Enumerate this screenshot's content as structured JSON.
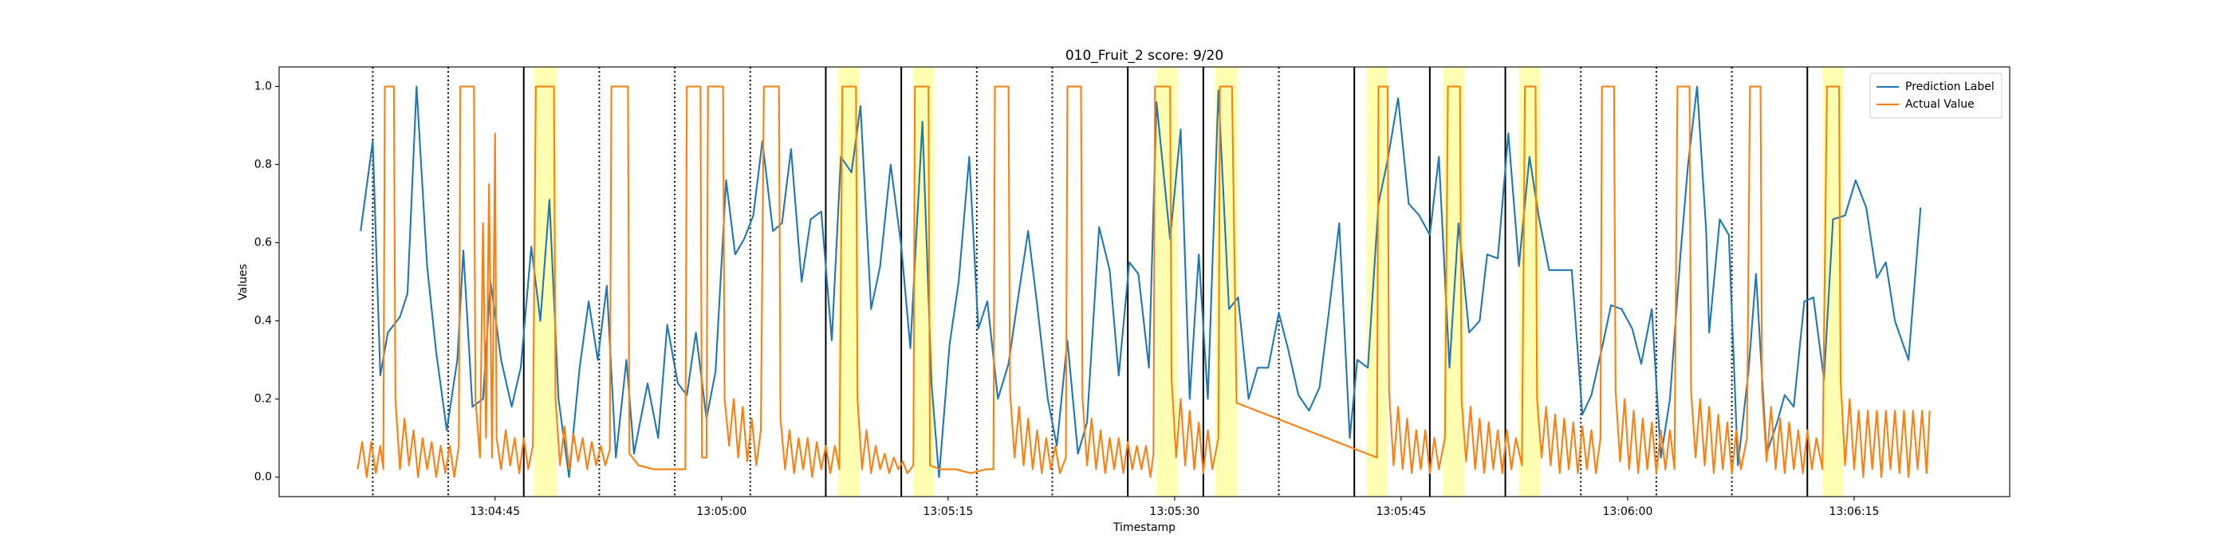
{
  "chart_data": {
    "type": "line",
    "title": "010_Fruit_2 score: 9/20",
    "x_label": "Timestamp",
    "y_label": "Values",
    "xlim": [
      30.7,
      145.3
    ],
    "ylim": [
      -0.05,
      1.05
    ],
    "xticks": [
      {
        "value": 45,
        "label": "13:04:45"
      },
      {
        "value": 60,
        "label": "13:05:00"
      },
      {
        "value": 75,
        "label": "13:05:15"
      },
      {
        "value": 90,
        "label": "13:05:30"
      },
      {
        "value": 105,
        "label": "13:05:45"
      },
      {
        "value": 120,
        "label": "13:06:00"
      },
      {
        "value": 135,
        "label": "13:06:15"
      }
    ],
    "yticks": [
      {
        "value": 0,
        "label": "0.0"
      },
      {
        "value": 0.2,
        "label": "0.2"
      },
      {
        "value": 0.4,
        "label": "0.4"
      },
      {
        "value": 0.6,
        "label": "0.6"
      },
      {
        "value": 0.8,
        "label": "0.8"
      },
      {
        "value": 1.0,
        "label": "1.0"
      }
    ],
    "legend": "upper right",
    "vline_color": "#000000",
    "vlines_solid": [
      46.9,
      66.9,
      71.9,
      86.9,
      91.9,
      101.9,
      106.9,
      111.9,
      131.9
    ],
    "vlines_dotted": [
      36.9,
      41.9,
      51.9,
      56.9,
      61.9,
      76.9,
      81.9,
      96.9,
      116.9,
      121.9,
      126.9
    ],
    "span_color": "#ffff00",
    "spans": [
      [
        47.6,
        49.1
      ],
      [
        67.7,
        69.1
      ],
      [
        72.7,
        74.1
      ],
      [
        88.8,
        90.2
      ],
      [
        92.7,
        94.2
      ],
      [
        102.7,
        104.1
      ],
      [
        107.8,
        109.2
      ],
      [
        112.8,
        114.2
      ],
      [
        132.9,
        134.3
      ]
    ],
    "series": [
      {
        "name": "Prediction Label",
        "color": "#1f77b4",
        "x": [
          36.1,
          36.9,
          37.4,
          37.9,
          38.7,
          39.2,
          39.8,
          40.5,
          41.1,
          41.8,
          42.5,
          42.9,
          43.5,
          44.2,
          44.7,
          45.4,
          46.1,
          46.7,
          47.4,
          48.0,
          48.6,
          49.2,
          49.9,
          50.6,
          51.2,
          51.8,
          52.4,
          53.0,
          53.7,
          54.2,
          55.1,
          55.8,
          56.4,
          57.1,
          57.7,
          58.3,
          59.0,
          59.6,
          60.3,
          60.9,
          61.5,
          62.1,
          62.7,
          63.4,
          64.0,
          64.6,
          65.3,
          65.9,
          66.6,
          67.3,
          67.9,
          68.6,
          69.2,
          69.9,
          70.5,
          71.2,
          71.9,
          72.5,
          73.3,
          73.9,
          74.4,
          75.1,
          75.7,
          76.4,
          77.0,
          77.6,
          78.3,
          79.0,
          79.6,
          80.3,
          80.9,
          81.6,
          82.2,
          82.9,
          83.6,
          84.2,
          85.0,
          85.7,
          86.3,
          87.0,
          87.6,
          88.3,
          88.8,
          89.7,
          90.4,
          91.0,
          91.6,
          92.2,
          92.9,
          93.6,
          94.2,
          94.9,
          95.5,
          96.2,
          96.9,
          97.5,
          98.2,
          98.9,
          99.6,
          100.3,
          100.9,
          101.6,
          102.1,
          102.8,
          103.5,
          104.1,
          104.8,
          105.5,
          106.2,
          106.9,
          107.5,
          108.2,
          108.8,
          109.5,
          110.2,
          110.7,
          111.4,
          112.1,
          112.8,
          113.5,
          114.1,
          114.8,
          115.5,
          116.3,
          117.0,
          117.6,
          118.3,
          118.9,
          119.6,
          120.3,
          120.9,
          121.6,
          122.2,
          122.8,
          123.5,
          124.0,
          124.6,
          125.2,
          125.4,
          126.1,
          126.7,
          127.3,
          128.0,
          128.5,
          129.2,
          129.9,
          130.4,
          131.0,
          131.7,
          132.3,
          133.0,
          133.6,
          134.4,
          135.1,
          135.8,
          136.5,
          137.1,
          137.7,
          138.6,
          139.4
        ],
        "values": [
          0.63,
          0.86,
          0.26,
          0.37,
          0.41,
          0.47,
          1.0,
          0.54,
          0.32,
          0.12,
          0.3,
          0.58,
          0.18,
          0.2,
          0.5,
          0.3,
          0.18,
          0.28,
          0.59,
          0.4,
          0.71,
          0.2,
          0.0,
          0.28,
          0.45,
          0.3,
          0.49,
          0.05,
          0.3,
          0.06,
          0.24,
          0.1,
          0.39,
          0.24,
          0.21,
          0.37,
          0.15,
          0.27,
          0.76,
          0.57,
          0.61,
          0.67,
          0.86,
          0.63,
          0.65,
          0.84,
          0.5,
          0.66,
          0.68,
          0.35,
          0.82,
          0.78,
          0.95,
          0.43,
          0.54,
          0.8,
          0.59,
          0.33,
          0.91,
          0.24,
          0.0,
          0.34,
          0.5,
          0.82,
          0.38,
          0.45,
          0.2,
          0.29,
          0.45,
          0.63,
          0.44,
          0.2,
          0.08,
          0.35,
          0.06,
          0.14,
          0.64,
          0.53,
          0.26,
          0.55,
          0.52,
          0.28,
          0.96,
          0.61,
          0.89,
          0.2,
          0.57,
          0.2,
          0.99,
          0.43,
          0.46,
          0.2,
          0.28,
          0.28,
          0.42,
          0.33,
          0.21,
          0.17,
          0.23,
          0.45,
          0.65,
          0.1,
          0.3,
          0.28,
          0.7,
          0.81,
          0.97,
          0.7,
          0.67,
          0.62,
          0.82,
          0.28,
          0.65,
          0.37,
          0.4,
          0.57,
          0.56,
          0.88,
          0.54,
          0.82,
          0.67,
          0.53,
          0.53,
          0.53,
          0.16,
          0.21,
          0.33,
          0.44,
          0.43,
          0.38,
          0.29,
          0.43,
          0.05,
          0.2,
          0.57,
          0.8,
          1.0,
          0.63,
          0.37,
          0.66,
          0.62,
          0.03,
          0.27,
          0.52,
          0.06,
          0.14,
          0.21,
          0.18,
          0.45,
          0.46,
          0.25,
          0.66,
          0.67,
          0.76,
          0.69,
          0.51,
          0.55,
          0.4,
          0.3,
          0.69
        ]
      },
      {
        "name": "Actual Value",
        "color": "#ff7f0e",
        "x": [
          35.9,
          36.2,
          36.5,
          36.8,
          37.1,
          37.4,
          37.6,
          37.7,
          38.3,
          38.4,
          38.7,
          39.0,
          39.3,
          39.6,
          39.9,
          40.2,
          40.5,
          40.8,
          41.1,
          41.4,
          41.7,
          42.0,
          42.3,
          42.6,
          42.7,
          43.6,
          43.7,
          44.0,
          44.2,
          44.4,
          44.6,
          44.8,
          45.0,
          45.1,
          45.4,
          45.7,
          46.0,
          46.3,
          46.6,
          46.9,
          47.2,
          47.5,
          47.7,
          48.9,
          49.0,
          49.3,
          49.6,
          49.9,
          50.2,
          50.5,
          50.8,
          51.1,
          51.4,
          51.7,
          52.0,
          52.3,
          52.6,
          52.7,
          53.8,
          53.9,
          54.5,
          55.5,
          56.5,
          57.6,
          57.7,
          58.6,
          58.7,
          59.0,
          59.1,
          60.1,
          60.2,
          60.5,
          60.8,
          61.1,
          61.4,
          61.7,
          62.0,
          62.3,
          62.6,
          62.8,
          63.8,
          63.9,
          64.2,
          64.5,
          64.8,
          65.1,
          65.4,
          65.7,
          66.0,
          66.3,
          66.6,
          66.9,
          67.2,
          67.5,
          67.8,
          68.0,
          68.9,
          69.0,
          69.3,
          69.6,
          69.9,
          70.2,
          70.5,
          70.8,
          71.1,
          71.4,
          71.7,
          72.0,
          72.3,
          72.7,
          72.8,
          73.7,
          73.8,
          74.5,
          75.5,
          76.5,
          77.5,
          78.0,
          78.1,
          79.0,
          79.1,
          79.4,
          79.7,
          80.0,
          80.3,
          80.6,
          80.9,
          81.2,
          81.5,
          81.8,
          82.1,
          82.4,
          82.8,
          82.9,
          83.8,
          83.9,
          84.2,
          84.5,
          84.8,
          85.1,
          85.4,
          85.7,
          86.0,
          86.3,
          86.6,
          86.9,
          87.2,
          87.5,
          87.8,
          88.1,
          88.4,
          88.6,
          88.7,
          89.7,
          89.8,
          90.1,
          90.4,
          90.7,
          91.0,
          91.3,
          91.6,
          91.9,
          92.2,
          92.5,
          92.9,
          93.0,
          93.8,
          94.1,
          103.4,
          103.5,
          104.1,
          104.2,
          104.5,
          104.8,
          105.1,
          105.4,
          105.7,
          106.0,
          106.3,
          106.6,
          106.9,
          107.2,
          107.5,
          107.9,
          108.1,
          108.9,
          109.0,
          109.3,
          109.6,
          109.9,
          110.2,
          110.5,
          110.8,
          111.1,
          111.4,
          111.7,
          112.0,
          112.3,
          112.6,
          113.0,
          113.2,
          113.9,
          114.0,
          114.3,
          114.6,
          114.9,
          115.2,
          115.5,
          115.8,
          116.1,
          116.4,
          116.7,
          117.0,
          117.3,
          117.6,
          117.9,
          118.2,
          118.3,
          119.1,
          119.2,
          119.5,
          119.8,
          120.1,
          120.4,
          120.7,
          121.0,
          121.3,
          121.6,
          121.9,
          122.2,
          122.5,
          122.8,
          123.1,
          123.3,
          124.1,
          124.2,
          124.5,
          124.8,
          125.1,
          125.4,
          125.7,
          126.0,
          126.3,
          126.6,
          126.9,
          127.2,
          127.5,
          127.9,
          128.1,
          128.8,
          128.9,
          129.2,
          129.5,
          129.8,
          130.1,
          130.4,
          130.7,
          131.0,
          131.3,
          131.6,
          131.9,
          132.2,
          132.5,
          132.9,
          133.2,
          134.0,
          134.1,
          134.4,
          134.7,
          135.0,
          135.3,
          135.6,
          135.9,
          136.2,
          136.5,
          136.8,
          137.1,
          137.4,
          137.7,
          138.0,
          138.3,
          138.6,
          138.9,
          139.2,
          139.5,
          139.8,
          140.0
        ],
        "values": [
          0.02,
          0.09,
          0.0,
          0.09,
          0.01,
          0.08,
          0.02,
          1.0,
          1.0,
          0.2,
          0.02,
          0.15,
          0.03,
          0.12,
          0.0,
          0.1,
          0.02,
          0.09,
          0.0,
          0.08,
          0.01,
          0.08,
          0.0,
          0.08,
          1.0,
          1.0,
          0.2,
          0.05,
          0.65,
          0.1,
          0.75,
          0.05,
          0.88,
          0.1,
          0.02,
          0.12,
          0.03,
          0.1,
          0.01,
          0.1,
          0.02,
          0.08,
          1.0,
          1.0,
          0.2,
          0.03,
          0.13,
          0.02,
          0.11,
          0.04,
          0.1,
          0.02,
          0.09,
          0.03,
          0.08,
          0.03,
          0.07,
          1.0,
          1.0,
          0.06,
          0.03,
          0.02,
          0.02,
          0.02,
          1.0,
          1.0,
          0.05,
          0.05,
          1.0,
          1.0,
          0.2,
          0.08,
          0.2,
          0.05,
          0.18,
          0.04,
          0.15,
          0.03,
          0.12,
          1.0,
          1.0,
          0.15,
          0.02,
          0.12,
          0.01,
          0.1,
          0.02,
          0.1,
          0.0,
          0.09,
          0.02,
          0.08,
          0.01,
          0.08,
          0.02,
          1.0,
          1.0,
          0.2,
          0.02,
          0.12,
          0.01,
          0.08,
          0.02,
          0.06,
          0.01,
          0.05,
          0.02,
          0.04,
          0.01,
          0.03,
          1.0,
          1.0,
          0.03,
          0.02,
          0.02,
          0.01,
          0.02,
          0.02,
          1.0,
          1.0,
          0.22,
          0.05,
          0.18,
          0.03,
          0.15,
          0.02,
          0.12,
          0.01,
          0.1,
          0.02,
          0.08,
          0.01,
          0.05,
          1.0,
          1.0,
          0.2,
          0.03,
          0.15,
          0.02,
          0.12,
          0.01,
          0.1,
          0.02,
          0.1,
          0.01,
          0.09,
          0.02,
          0.08,
          0.02,
          0.08,
          0.0,
          0.06,
          1.0,
          1.0,
          0.25,
          0.05,
          0.2,
          0.03,
          0.17,
          0.02,
          0.14,
          0.01,
          0.12,
          0.02,
          0.1,
          1.0,
          1.0,
          0.19,
          0.05,
          1.0,
          1.0,
          0.22,
          0.03,
          0.18,
          0.02,
          0.15,
          0.01,
          0.12,
          0.02,
          0.12,
          0.01,
          0.1,
          0.02,
          0.1,
          1.0,
          1.0,
          0.2,
          0.04,
          0.18,
          0.02,
          0.15,
          0.01,
          0.14,
          0.02,
          0.12,
          0.01,
          0.12,
          0.02,
          0.1,
          0.03,
          1.0,
          1.0,
          0.2,
          0.05,
          0.18,
          0.03,
          0.16,
          0.01,
          0.15,
          0.02,
          0.14,
          0.01,
          0.13,
          0.02,
          0.12,
          0.01,
          0.1,
          1.0,
          1.0,
          0.22,
          0.04,
          0.2,
          0.02,
          0.17,
          0.01,
          0.15,
          0.02,
          0.14,
          0.01,
          0.12,
          0.02,
          0.12,
          0.02,
          1.0,
          1.0,
          0.22,
          0.05,
          0.2,
          0.03,
          0.18,
          0.01,
          0.16,
          0.02,
          0.14,
          0.01,
          0.12,
          0.02,
          0.1,
          1.0,
          1.0,
          0.22,
          0.04,
          0.18,
          0.02,
          0.15,
          0.01,
          0.14,
          0.02,
          0.12,
          0.01,
          0.12,
          0.02,
          0.1,
          0.02,
          1.0,
          1.0,
          0.25,
          0.03,
          0.2,
          0.02,
          0.17,
          0.0,
          0.17,
          0.02,
          0.17,
          0.0,
          0.17,
          0.02,
          0.17,
          0.01,
          0.17,
          0.0,
          0.17,
          0.02,
          0.17,
          0.01,
          0.17
        ]
      }
    ]
  }
}
